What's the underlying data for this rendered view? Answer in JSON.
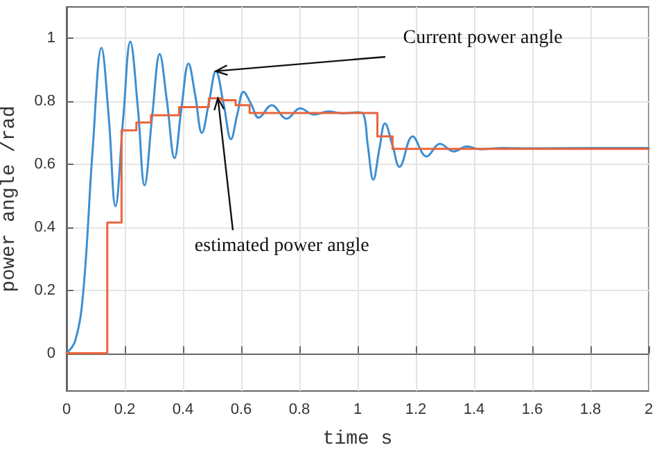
{
  "chart_data": {
    "type": "line",
    "xlabel": "time s",
    "ylabel": "power angle /rad",
    "xlim": [
      0,
      2
    ],
    "xticks": [
      0,
      0.2,
      0.4,
      0.6,
      0.8,
      1,
      1.2,
      1.4,
      1.6,
      1.8,
      2
    ],
    "ylim": [
      -0.12,
      1.1
    ],
    "yticks": [
      0,
      0.2,
      0.4,
      0.6,
      0.8,
      1
    ],
    "grid": true,
    "marker": "none",
    "line_style": "solid",
    "series": [
      {
        "color": "#3d8fd1",
        "x": [
          0,
          0.03,
          0.057,
          0.09,
          0.12,
          0.145,
          0.168,
          0.195,
          0.219,
          0.245,
          0.268,
          0.295,
          0.32,
          0.345,
          0.371,
          0.395,
          0.419,
          0.442,
          0.465,
          0.49,
          0.513,
          0.54,
          0.565,
          0.587,
          0.608,
          0.635,
          0.66,
          0.705,
          0.756,
          0.803,
          0.85,
          0.9,
          0.95,
          1.0,
          1.02,
          1.035,
          1.054,
          1.075,
          1.094,
          1.12,
          1.144,
          1.189,
          1.237,
          1.283,
          1.33,
          1.375,
          1.42,
          1.5,
          1.6,
          1.8,
          2.0
        ],
        "values": [
          0,
          0.04,
          0.19,
          0.65,
          0.97,
          0.75,
          0.467,
          0.75,
          0.99,
          0.78,
          0.533,
          0.76,
          0.95,
          0.8,
          0.62,
          0.78,
          0.92,
          0.82,
          0.7,
          0.8,
          0.896,
          0.79,
          0.68,
          0.76,
          0.83,
          0.79,
          0.748,
          0.788,
          0.745,
          0.778,
          0.758,
          0.768,
          0.762,
          0.765,
          0.76,
          0.66,
          0.551,
          0.65,
          0.73,
          0.66,
          0.592,
          0.689,
          0.625,
          0.665,
          0.641,
          0.657,
          0.648,
          0.652,
          0.651,
          0.652,
          0.652
        ]
      },
      {
        "type": "step",
        "color": "#e8643c",
        "x": [
          0,
          0.14,
          0.189,
          0.24,
          0.29,
          0.387,
          0.489,
          0.533,
          0.581,
          0.629,
          1.068,
          1.12,
          2.0
        ],
        "values": [
          0,
          0.415,
          0.708,
          0.733,
          0.756,
          0.782,
          0.81,
          0.804,
          0.788,
          0.763,
          0.689,
          0.649,
          0.649
        ]
      }
    ],
    "annotations": [
      {
        "text": "Current power angle",
        "x": 0.513,
        "y": 0.896
      },
      {
        "text": "estimated power angle",
        "x": 0.52,
        "y": 0.81
      }
    ]
  }
}
